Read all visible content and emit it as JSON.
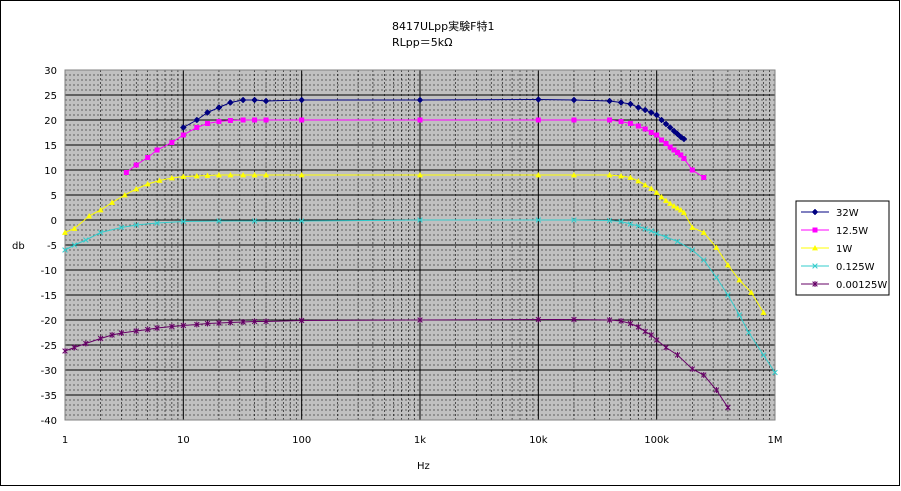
{
  "chart_data": {
    "type": "line",
    "title": "8417ULpp実験F特1",
    "subtitle": "RLpp＝5kΩ",
    "xlabel": "Hz",
    "ylabel": "db",
    "x_scale": "log",
    "xlim": [
      1,
      1000000
    ],
    "ylim": [
      -40,
      30
    ],
    "grid": true,
    "legend_position": "right",
    "x_ticks": [
      {
        "value": 1,
        "label": "1"
      },
      {
        "value": 10,
        "label": "10"
      },
      {
        "value": 100,
        "label": "100"
      },
      {
        "value": 1000,
        "label": "1k"
      },
      {
        "value": 10000,
        "label": "10k"
      },
      {
        "value": 100000,
        "label": "100k"
      },
      {
        "value": 1000000,
        "label": "1M"
      }
    ],
    "y_ticks": [
      30,
      25,
      20,
      15,
      10,
      5,
      0,
      -5,
      -10,
      -15,
      -20,
      -25,
      -30,
      -35,
      -40
    ],
    "series": [
      {
        "name": "32W",
        "color": "#000080",
        "marker": "diamond",
        "points": [
          [
            10,
            18.5
          ],
          [
            13,
            20
          ],
          [
            16,
            21.5
          ],
          [
            20,
            22.5
          ],
          [
            25,
            23.5
          ],
          [
            32,
            24
          ],
          [
            40,
            24
          ],
          [
            50,
            23.8
          ],
          [
            100,
            24
          ],
          [
            1000,
            24
          ],
          [
            10000,
            24.1
          ],
          [
            20000,
            24
          ],
          [
            40000,
            23.8
          ],
          [
            50000,
            23.5
          ],
          [
            60000,
            23.2
          ],
          [
            70000,
            22.5
          ],
          [
            80000,
            22
          ],
          [
            90000,
            21.5
          ],
          [
            100000,
            21
          ],
          [
            110000,
            20
          ],
          [
            120000,
            19.2
          ],
          [
            130000,
            18.5
          ],
          [
            140000,
            17.8
          ],
          [
            150000,
            17.2
          ],
          [
            160000,
            16.6
          ],
          [
            170000,
            16.2
          ]
        ]
      },
      {
        "name": "12.5W",
        "color": "#FF00FF",
        "marker": "square",
        "points": [
          [
            3.3,
            9.5
          ],
          [
            4,
            11
          ],
          [
            5,
            12.5
          ],
          [
            6,
            14
          ],
          [
            8,
            15.5
          ],
          [
            10,
            17
          ],
          [
            13,
            18.5
          ],
          [
            16,
            19.3
          ],
          [
            20,
            19.7
          ],
          [
            25,
            19.9
          ],
          [
            32,
            20
          ],
          [
            40,
            20
          ],
          [
            50,
            20
          ],
          [
            100,
            20
          ],
          [
            1000,
            20
          ],
          [
            10000,
            20
          ],
          [
            20000,
            20
          ],
          [
            40000,
            20
          ],
          [
            50000,
            19.7
          ],
          [
            60000,
            19.3
          ],
          [
            70000,
            18.8
          ],
          [
            80000,
            18.2
          ],
          [
            90000,
            17.5
          ],
          [
            100000,
            17
          ],
          [
            110000,
            16
          ],
          [
            120000,
            15.3
          ],
          [
            130000,
            14.6
          ],
          [
            140000,
            14
          ],
          [
            150000,
            13.5
          ],
          [
            160000,
            13
          ],
          [
            170000,
            12.3
          ],
          [
            200000,
            10
          ],
          [
            250000,
            8.5
          ]
        ]
      },
      {
        "name": "1W",
        "color": "#FFFF00",
        "marker": "triangle",
        "points": [
          [
            1,
            -2.5
          ],
          [
            1.2,
            -1.7
          ],
          [
            1.6,
            0.8
          ],
          [
            2,
            2
          ],
          [
            2.5,
            3.5
          ],
          [
            3.2,
            5
          ],
          [
            4,
            6.2
          ],
          [
            5,
            7.2
          ],
          [
            6.3,
            7.9
          ],
          [
            8,
            8.4
          ],
          [
            10,
            8.7
          ],
          [
            13,
            8.8
          ],
          [
            16,
            8.9
          ],
          [
            20,
            9
          ],
          [
            25,
            9
          ],
          [
            32,
            9
          ],
          [
            40,
            9
          ],
          [
            50,
            9
          ],
          [
            100,
            9
          ],
          [
            1000,
            9
          ],
          [
            10000,
            9
          ],
          [
            20000,
            9
          ],
          [
            40000,
            9
          ],
          [
            50000,
            8.8
          ],
          [
            60000,
            8.5
          ],
          [
            70000,
            7.8
          ],
          [
            80000,
            7
          ],
          [
            90000,
            6.3
          ],
          [
            100000,
            5.5
          ],
          [
            110000,
            4.6
          ],
          [
            120000,
            3.9
          ],
          [
            130000,
            3.3
          ],
          [
            140000,
            2.8
          ],
          [
            150000,
            2.4
          ],
          [
            160000,
            2
          ],
          [
            170000,
            1.5
          ],
          [
            200000,
            -1.5
          ],
          [
            250000,
            -2.5
          ],
          [
            320000,
            -5.5
          ],
          [
            400000,
            -9
          ],
          [
            500000,
            -12
          ],
          [
            630000,
            -14.5
          ],
          [
            800000,
            -18.5
          ]
        ]
      },
      {
        "name": "0.125W",
        "color": "#33CCCC",
        "marker": "x",
        "points": [
          [
            1,
            -6
          ],
          [
            1.2,
            -5
          ],
          [
            1.5,
            -4
          ],
          [
            2,
            -2.5
          ],
          [
            3,
            -1.5
          ],
          [
            4,
            -1
          ],
          [
            6,
            -0.6
          ],
          [
            10,
            -0.3
          ],
          [
            20,
            -0.2
          ],
          [
            40,
            -0.2
          ],
          [
            100,
            -0.2
          ],
          [
            1000,
            0
          ],
          [
            10000,
            0
          ],
          [
            20000,
            0
          ],
          [
            40000,
            -0.1
          ],
          [
            50000,
            -0.3
          ],
          [
            60000,
            -0.8
          ],
          [
            70000,
            -1.2
          ],
          [
            80000,
            -1.8
          ],
          [
            90000,
            -2.2
          ],
          [
            100000,
            -2.7
          ],
          [
            120000,
            -3.4
          ],
          [
            150000,
            -4.3
          ],
          [
            200000,
            -6
          ],
          [
            250000,
            -8
          ],
          [
            320000,
            -11.5
          ],
          [
            400000,
            -15
          ],
          [
            500000,
            -19
          ],
          [
            600000,
            -22.5
          ],
          [
            800000,
            -27
          ],
          [
            1000000,
            -30.5
          ]
        ]
      },
      {
        "name": "0.00125W",
        "color": "#660066",
        "marker": "star",
        "points": [
          [
            1,
            -26.2
          ],
          [
            1.2,
            -25.5
          ],
          [
            1.5,
            -24.7
          ],
          [
            2,
            -23.7
          ],
          [
            2.5,
            -23
          ],
          [
            3,
            -22.6
          ],
          [
            4,
            -22.2
          ],
          [
            5,
            -21.9
          ],
          [
            6,
            -21.6
          ],
          [
            8,
            -21.3
          ],
          [
            10,
            -21.1
          ],
          [
            13,
            -20.9
          ],
          [
            16,
            -20.7
          ],
          [
            20,
            -20.6
          ],
          [
            25,
            -20.5
          ],
          [
            32,
            -20.4
          ],
          [
            40,
            -20.3
          ],
          [
            50,
            -20.3
          ],
          [
            100,
            -20.1
          ],
          [
            1000,
            -20
          ],
          [
            10000,
            -19.9
          ],
          [
            20000,
            -19.9
          ],
          [
            40000,
            -20
          ],
          [
            50000,
            -20.2
          ],
          [
            60000,
            -20.7
          ],
          [
            70000,
            -21.4
          ],
          [
            80000,
            -22.3
          ],
          [
            90000,
            -23
          ],
          [
            100000,
            -24
          ],
          [
            120000,
            -25.5
          ],
          [
            150000,
            -27
          ],
          [
            200000,
            -29.8
          ],
          [
            250000,
            -31
          ],
          [
            320000,
            -34
          ],
          [
            400000,
            -37.5
          ]
        ]
      }
    ]
  }
}
